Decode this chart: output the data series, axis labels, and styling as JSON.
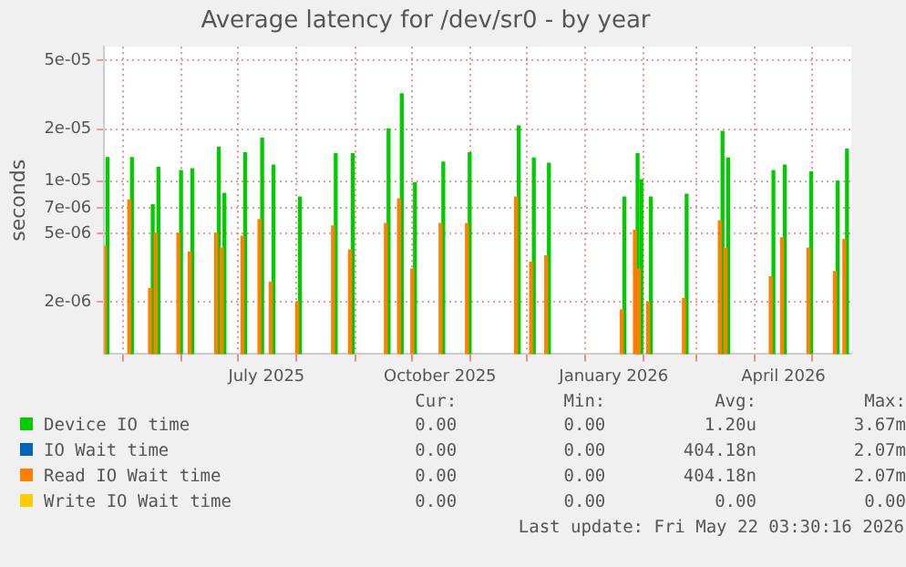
{
  "chart_data": {
    "type": "bar",
    "title": "Average latency for /dev/sr0 - by year",
    "ylabel": "seconds",
    "log": "y",
    "grid": true,
    "legend": "bottom",
    "xlim": [
      "2025-04-21",
      "2026-05-22"
    ],
    "xticks": [
      {
        "value": "2025-05-01",
        "label": null
      },
      {
        "value": "2025-06-01",
        "label": null
      },
      {
        "value": "2025-07-01",
        "label": null
      },
      {
        "value": "2025-07-16",
        "label": "July 2025"
      },
      {
        "value": "2025-08-01",
        "label": null
      },
      {
        "value": "2025-09-01",
        "label": null
      },
      {
        "value": "2025-10-01",
        "label": null
      },
      {
        "value": "2025-10-16",
        "label": "October 2025"
      },
      {
        "value": "2025-11-01",
        "label": null
      },
      {
        "value": "2025-12-01",
        "label": null
      },
      {
        "value": "2026-01-01",
        "label": null
      },
      {
        "value": "2026-01-16",
        "label": "January 2026"
      },
      {
        "value": "2026-02-01",
        "label": null
      },
      {
        "value": "2026-03-01",
        "label": null
      },
      {
        "value": "2026-04-01",
        "label": null
      },
      {
        "value": "2026-04-16",
        "label": "April 2026"
      },
      {
        "value": "2026-05-01",
        "label": null
      }
    ],
    "ylim": [
      1e-06,
      6e-05
    ],
    "yticks": [
      {
        "value": 2e-06,
        "label": "2e-06"
      },
      {
        "value": 5e-06,
        "label": "5e-06"
      },
      {
        "value": 7e-06,
        "label": "7e-06"
      },
      {
        "value": 1e-05,
        "label": "1e-05"
      },
      {
        "value": 2e-05,
        "label": "2e-05"
      },
      {
        "value": 5e-05,
        "label": "5e-05"
      }
    ],
    "x": [
      "2025-04-22",
      "2025-05-05",
      "2025-05-16",
      "2025-05-19",
      "2025-05-31",
      "2025-06-06",
      "2025-06-20",
      "2025-06-23",
      "2025-07-04",
      "2025-07-13",
      "2025-07-19",
      "2025-08-02",
      "2025-08-21",
      "2025-08-30",
      "2025-09-18",
      "2025-09-25",
      "2025-10-02",
      "2025-10-17",
      "2025-10-31",
      "2025-11-26",
      "2025-12-04",
      "2025-12-12",
      "2026-01-21",
      "2026-01-28",
      "2026-01-30",
      "2026-02-04",
      "2026-02-23",
      "2026-03-14",
      "2026-03-17",
      "2026-04-10",
      "2026-04-16",
      "2026-04-30",
      "2026-05-14",
      "2026-05-19"
    ],
    "series": [
      {
        "name": "Device IO time",
        "color": "#00cc00",
        "values": [
          1.37e-05,
          1.37e-05,
          7.3e-06,
          1.2e-05,
          1.15e-05,
          1.18e-05,
          1.57e-05,
          8.5e-06,
          1.46e-05,
          1.77e-05,
          1.24e-05,
          8.1e-06,
          1.44e-05,
          1.44e-05,
          2e-05,
          3.2e-05,
          9.8e-06,
          1.29e-05,
          1.46e-05,
          2.09e-05,
          1.36e-05,
          1.27e-05,
          8.1e-06,
          1.44e-05,
          1.02e-05,
          8.1e-06,
          8.4e-06,
          1.94e-05,
          1.36e-05,
          1.15e-05,
          1.24e-05,
          1.13e-05,
          1e-05,
          1.53e-05
        ]
      },
      {
        "name": "IO Wait time",
        "color": "#0066b3",
        "values": [
          null,
          null,
          null,
          null,
          null,
          null,
          null,
          null,
          null,
          null,
          null,
          null,
          null,
          null,
          null,
          null,
          null,
          null,
          null,
          null,
          null,
          null,
          null,
          null,
          null,
          null,
          null,
          null,
          null,
          null,
          null,
          null,
          null,
          null
        ]
      },
      {
        "name": "Read IO Wait time",
        "color": "#ff8000",
        "values": [
          4.2e-06,
          7.8e-06,
          2.4e-06,
          5e-06,
          5e-06,
          3.9e-06,
          5e-06,
          4.1e-06,
          4.8e-06,
          6e-06,
          2.6e-06,
          2e-06,
          5.5e-06,
          4e-06,
          5.7e-06,
          7.9e-06,
          3.1e-06,
          5.7e-06,
          5.7e-06,
          8.1e-06,
          3.4e-06,
          3.7e-06,
          1.8e-06,
          5.2e-06,
          3.1e-06,
          2e-06,
          2.1e-06,
          5.9e-06,
          4.1e-06,
          2.8e-06,
          4.7e-06,
          4.1e-06,
          3e-06,
          4.6e-06
        ]
      },
      {
        "name": "Write IO Wait time",
        "color": "#ffcc00",
        "values": [
          null,
          null,
          null,
          null,
          null,
          null,
          null,
          null,
          null,
          null,
          null,
          null,
          null,
          null,
          null,
          null,
          null,
          null,
          null,
          null,
          null,
          null,
          null,
          null,
          null,
          null,
          null,
          null,
          null,
          null,
          null,
          null,
          null,
          null
        ]
      }
    ],
    "annotations": [
      "Cur:",
      "Min:",
      "Avg:",
      "Max:",
      "0.00",
      "0.00",
      "1.20u",
      "3.67m",
      "0.00",
      "0.00",
      "404.18n",
      "2.07m",
      "0.00",
      "0.00",
      "404.18n",
      "2.07m",
      "0.00",
      "0.00",
      "0.00",
      "0.00",
      "Last update: Fri May 22 03:30:16 2026"
    ]
  }
}
